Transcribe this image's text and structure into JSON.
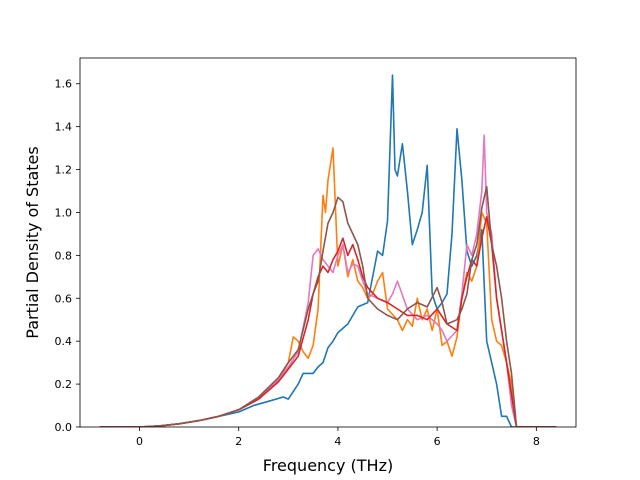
{
  "chart_data": {
    "type": "line",
    "title": "",
    "xlabel": "Frequency (THz)",
    "ylabel": "Partial Density of States",
    "xlim": [
      -1.2,
      8.8
    ],
    "ylim": [
      0.0,
      1.72
    ],
    "xticks": [
      0,
      2,
      4,
      6,
      8
    ],
    "xtick_labels": [
      "0",
      "2",
      "4",
      "6",
      "8"
    ],
    "yticks": [
      0.0,
      0.2,
      0.4,
      0.6,
      0.8,
      1.0,
      1.2,
      1.4,
      1.6
    ],
    "ytick_labels": [
      "0.0",
      "0.2",
      "0.4",
      "0.6",
      "0.8",
      "1.0",
      "1.2",
      "1.4",
      "1.6"
    ],
    "grid": false,
    "legend": "none",
    "series": [
      {
        "color": "#1f77b4",
        "x": [
          -0.8,
          0,
          0.4,
          0.8,
          1.2,
          1.6,
          2.0,
          2.3,
          2.6,
          2.9,
          3.0,
          3.2,
          3.3,
          3.5,
          3.6,
          3.7,
          3.8,
          3.9,
          4.0,
          4.2,
          4.4,
          4.6,
          4.8,
          4.9,
          5.0,
          5.1,
          5.15,
          5.2,
          5.3,
          5.4,
          5.5,
          5.6,
          5.7,
          5.8,
          5.9,
          6.0,
          6.1,
          6.2,
          6.3,
          6.4,
          6.5,
          6.6,
          6.7,
          6.8,
          6.9,
          7.0,
          7.1,
          7.2,
          7.3,
          7.4,
          7.5,
          7.6,
          8.4
        ],
        "y": [
          0,
          0,
          0.005,
          0.015,
          0.03,
          0.05,
          0.07,
          0.1,
          0.12,
          0.14,
          0.13,
          0.2,
          0.25,
          0.25,
          0.28,
          0.3,
          0.37,
          0.4,
          0.44,
          0.48,
          0.56,
          0.58,
          0.82,
          0.8,
          0.96,
          1.64,
          1.2,
          1.17,
          1.32,
          1.1,
          0.85,
          0.92,
          1.0,
          1.22,
          0.62,
          0.55,
          0.58,
          0.62,
          0.9,
          1.39,
          1.15,
          0.82,
          0.75,
          0.8,
          0.92,
          0.4,
          0.3,
          0.2,
          0.05,
          0.05,
          0.0,
          0.0,
          0.0
        ]
      },
      {
        "color": "#ff7f0e",
        "x": [
          -0.8,
          0,
          0.4,
          0.8,
          1.2,
          1.6,
          2.0,
          2.4,
          2.8,
          3.0,
          3.1,
          3.2,
          3.3,
          3.4,
          3.5,
          3.6,
          3.7,
          3.75,
          3.8,
          3.9,
          4.0,
          4.1,
          4.2,
          4.3,
          4.4,
          4.5,
          4.6,
          4.7,
          4.8,
          4.9,
          5.0,
          5.2,
          5.3,
          5.4,
          5.5,
          5.6,
          5.7,
          5.8,
          5.9,
          6.0,
          6.1,
          6.2,
          6.3,
          6.4,
          6.5,
          6.6,
          6.7,
          6.8,
          6.9,
          7.0,
          7.1,
          7.2,
          7.3,
          7.4,
          7.5,
          7.6,
          8.4
        ],
        "y": [
          0,
          0,
          0.005,
          0.015,
          0.03,
          0.05,
          0.08,
          0.13,
          0.22,
          0.3,
          0.42,
          0.4,
          0.35,
          0.32,
          0.38,
          0.55,
          1.08,
          1.0,
          1.15,
          1.3,
          0.75,
          0.85,
          0.7,
          0.78,
          0.68,
          0.65,
          0.6,
          0.62,
          0.68,
          0.72,
          0.55,
          0.5,
          0.45,
          0.5,
          0.47,
          0.6,
          0.5,
          0.55,
          0.45,
          0.55,
          0.38,
          0.4,
          0.33,
          0.42,
          0.6,
          0.72,
          0.68,
          0.75,
          1.0,
          0.95,
          0.5,
          0.4,
          0.38,
          0.3,
          0.2,
          0.0,
          0.0
        ]
      },
      {
        "color": "#e377c2",
        "x": [
          -0.8,
          0,
          0.4,
          0.8,
          1.2,
          1.6,
          2.0,
          2.4,
          2.8,
          3.0,
          3.2,
          3.4,
          3.5,
          3.6,
          3.7,
          3.8,
          3.9,
          4.0,
          4.1,
          4.2,
          4.3,
          4.4,
          4.5,
          4.6,
          4.8,
          5.0,
          5.1,
          5.2,
          5.4,
          5.6,
          5.8,
          6.0,
          6.1,
          6.2,
          6.4,
          6.5,
          6.6,
          6.7,
          6.8,
          6.9,
          6.95,
          7.0,
          7.1,
          7.2,
          7.4,
          7.5,
          7.6,
          8.4
        ],
        "y": [
          0,
          0,
          0.005,
          0.015,
          0.03,
          0.05,
          0.08,
          0.13,
          0.22,
          0.28,
          0.35,
          0.58,
          0.8,
          0.83,
          0.78,
          0.75,
          0.72,
          0.8,
          0.85,
          0.72,
          0.76,
          0.75,
          0.68,
          0.62,
          0.6,
          0.58,
          0.62,
          0.68,
          0.55,
          0.5,
          0.52,
          0.48,
          0.45,
          0.4,
          0.45,
          0.62,
          0.85,
          0.8,
          0.9,
          1.1,
          1.36,
          1.0,
          0.9,
          0.6,
          0.3,
          0.1,
          0.0,
          0.0
        ]
      },
      {
        "color": "#d62728",
        "x": [
          -0.8,
          0,
          0.4,
          0.8,
          1.2,
          1.6,
          2.0,
          2.4,
          2.8,
          3.0,
          3.2,
          3.4,
          3.5,
          3.6,
          3.7,
          3.8,
          3.9,
          4.0,
          4.1,
          4.2,
          4.3,
          4.4,
          4.5,
          4.6,
          4.8,
          5.0,
          5.2,
          5.4,
          5.6,
          5.8,
          6.0,
          6.2,
          6.4,
          6.5,
          6.6,
          6.7,
          6.8,
          6.9,
          7.0,
          7.1,
          7.2,
          7.3,
          7.4,
          7.5,
          7.6,
          8.4
        ],
        "y": [
          0,
          0,
          0.005,
          0.015,
          0.03,
          0.05,
          0.08,
          0.13,
          0.21,
          0.27,
          0.33,
          0.5,
          0.62,
          0.7,
          0.75,
          0.72,
          0.78,
          0.82,
          0.88,
          0.8,
          0.85,
          0.78,
          0.7,
          0.65,
          0.6,
          0.58,
          0.55,
          0.52,
          0.52,
          0.5,
          0.55,
          0.48,
          0.45,
          0.6,
          0.7,
          0.78,
          0.75,
          0.88,
          0.98,
          0.85,
          0.6,
          0.45,
          0.3,
          0.15,
          0.0,
          0.0
        ]
      },
      {
        "color": "#8c564b",
        "x": [
          -0.8,
          0,
          0.4,
          0.8,
          1.2,
          1.6,
          2.0,
          2.4,
          2.8,
          3.0,
          3.2,
          3.4,
          3.5,
          3.6,
          3.7,
          3.8,
          3.9,
          4.0,
          4.1,
          4.2,
          4.3,
          4.4,
          4.5,
          4.6,
          4.8,
          5.0,
          5.2,
          5.4,
          5.6,
          5.8,
          6.0,
          6.1,
          6.2,
          6.4,
          6.5,
          6.6,
          6.7,
          6.8,
          6.9,
          7.0,
          7.1,
          7.2,
          7.3,
          7.4,
          7.5,
          7.6,
          8.4
        ],
        "y": [
          0,
          0,
          0.005,
          0.015,
          0.03,
          0.05,
          0.08,
          0.14,
          0.23,
          0.3,
          0.36,
          0.55,
          0.62,
          0.68,
          0.82,
          0.95,
          1.0,
          1.07,
          1.05,
          0.95,
          0.9,
          0.85,
          0.75,
          0.6,
          0.55,
          0.52,
          0.5,
          0.55,
          0.58,
          0.56,
          0.65,
          0.58,
          0.48,
          0.5,
          0.55,
          0.62,
          0.78,
          0.85,
          1.02,
          1.12,
          0.85,
          0.75,
          0.6,
          0.4,
          0.25,
          0.0,
          0.0
        ]
      }
    ]
  }
}
